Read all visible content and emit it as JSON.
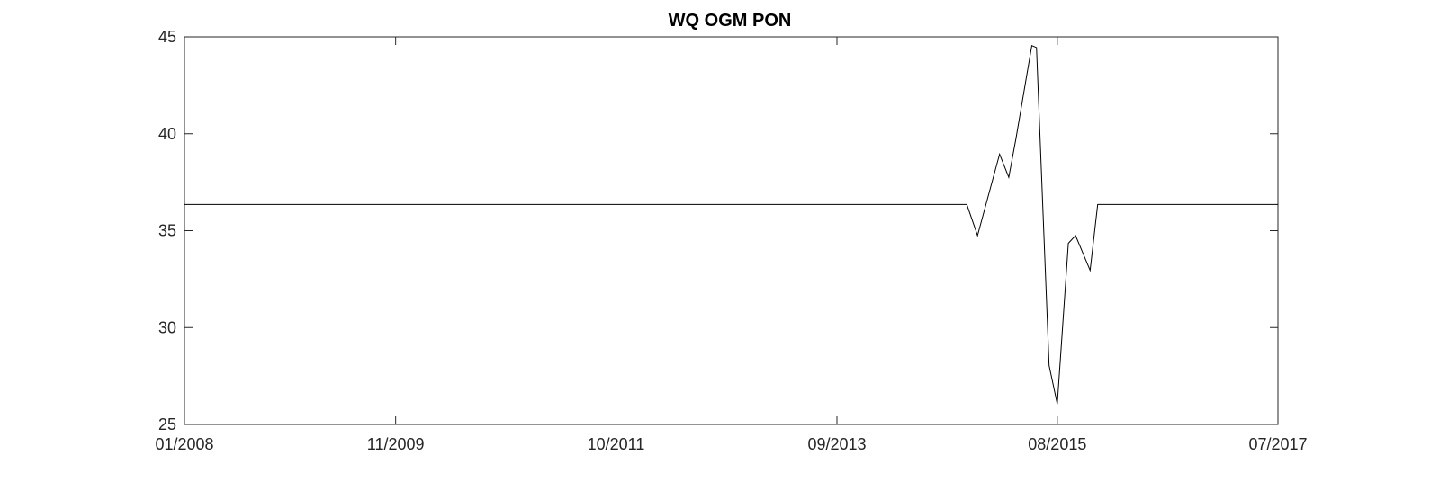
{
  "chart_data": {
    "type": "line",
    "title": "WQ OGM PON",
    "xlabel": "",
    "ylabel": "",
    "x_axis_type": "date",
    "xlim": [
      "2008-01-01",
      "2017-07-01"
    ],
    "ylim": [
      25,
      45
    ],
    "grid": false,
    "legend": "none",
    "x_ticks": [
      {
        "date": "2008-01-01",
        "label": "01/2008"
      },
      {
        "date": "2009-11-01",
        "label": "11/2009"
      },
      {
        "date": "2011-10-01",
        "label": "10/2011"
      },
      {
        "date": "2013-09-01",
        "label": "09/2013"
      },
      {
        "date": "2015-08-01",
        "label": "08/2015"
      },
      {
        "date": "2017-07-01",
        "label": "07/2017"
      }
    ],
    "y_ticks": [
      25,
      30,
      35,
      40,
      45
    ],
    "series": [
      {
        "color": "#000000",
        "points": [
          {
            "x": "2008-01-01",
            "y": 36.35
          },
          {
            "x": "2014-10-18",
            "y": 36.35
          },
          {
            "x": "2014-11-21",
            "y": 34.75
          },
          {
            "x": "2015-01-30",
            "y": 38.95
          },
          {
            "x": "2015-02-28",
            "y": 37.75
          },
          {
            "x": "2015-03-23",
            "y": 39.75
          },
          {
            "x": "2015-05-12",
            "y": 44.55
          },
          {
            "x": "2015-05-27",
            "y": 44.45
          },
          {
            "x": "2015-07-06",
            "y": 28.05
          },
          {
            "x": "2015-08-01",
            "y": 26.05
          },
          {
            "x": "2015-09-05",
            "y": 34.35
          },
          {
            "x": "2015-09-28",
            "y": 34.75
          },
          {
            "x": "2015-11-13",
            "y": 32.95
          },
          {
            "x": "2015-12-07",
            "y": 36.35
          },
          {
            "x": "2017-07-01",
            "y": 36.35
          }
        ]
      }
    ]
  }
}
